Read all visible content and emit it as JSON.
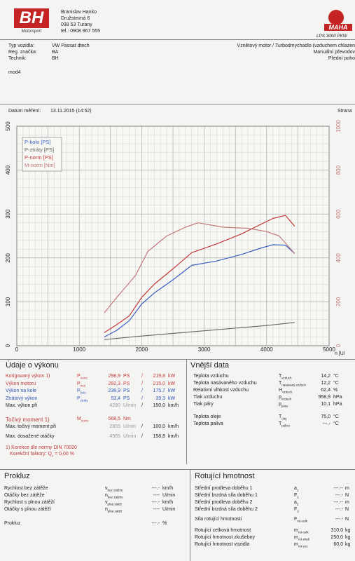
{
  "header": {
    "logo_main": "BH",
    "logo_sub": "Motorsport",
    "contact": [
      "Branislav Hanko",
      "Družstevná 6",
      "038 53 Turany",
      "tel.: 0908 967 555"
    ],
    "maha_logo": "MAHA",
    "maha_model": "LPS 3000 PKW"
  },
  "vehicle": {
    "type_label": "Typ vozidla:",
    "type_value": "VW Passat dtech",
    "reg_label": "Reg. značka:",
    "reg_value": "BA",
    "tech_label": "Technik:",
    "tech_value": "BH",
    "right_lines": [
      "Vznětový motor / Turbodmychadlo (vzduchem chlazen",
      "Manuální převodov",
      "Přední poho"
    ],
    "note": "mod4"
  },
  "measure": {
    "date_label": "Datum měření:",
    "date_value": "13.11.2015 (14:52)",
    "right": "Strana"
  },
  "chart_data": {
    "type": "line",
    "x_label": "n [U/",
    "x_ticks": [
      0,
      1000,
      2000,
      3000,
      4000,
      5000
    ],
    "xlim": [
      0,
      5000
    ],
    "y_left_ticks": [
      0,
      100,
      200,
      300,
      400,
      500
    ],
    "ylim_left": [
      0,
      500
    ],
    "y_right_ticks": [
      0,
      200,
      400,
      600,
      800,
      1000
    ],
    "ylim_right": [
      0,
      1000
    ],
    "legend": [
      {
        "name": "P-kolo [PS]",
        "color": "#3a5dbf"
      },
      {
        "name": "P-ztráty [PS]",
        "color": "#666666"
      },
      {
        "name": "P-norm [PS]",
        "color": "#c23a3a"
      },
      {
        "name": "M-norm [Nm]",
        "color": "#c47a7a"
      }
    ],
    "series": [
      {
        "name": "P-kolo [PS]",
        "axis": "left",
        "color": "#3a5dbf",
        "x": [
          1400,
          1600,
          1800,
          2000,
          2200,
          2500,
          2800,
          3200,
          3600,
          3900,
          4100,
          4300,
          4450
        ],
        "y": [
          20,
          35,
          57,
          95,
          120,
          150,
          183,
          193,
          208,
          222,
          230,
          229,
          210
        ]
      },
      {
        "name": "P-ztráty [PS]",
        "axis": "left",
        "color": "#666666",
        "x": [
          1400,
          2000,
          3000,
          4000,
          4450
        ],
        "y": [
          14,
          22,
          34,
          46,
          53
        ]
      },
      {
        "name": "P-norm [PS]",
        "axis": "left",
        "color": "#c23a3a",
        "x": [
          1400,
          1600,
          1800,
          2000,
          2200,
          2500,
          2800,
          3200,
          3600,
          3900,
          4100,
          4300,
          4450
        ],
        "y": [
          30,
          48,
          68,
          110,
          140,
          175,
          212,
          232,
          255,
          276,
          290,
          297,
          272
        ]
      },
      {
        "name": "M-norm [Nm]",
        "axis": "right",
        "color": "#c47a7a",
        "x": [
          1400,
          1600,
          1750,
          1900,
          2100,
          2400,
          2700,
          2900,
          3300,
          3700,
          4000,
          4200,
          4450
        ],
        "y": [
          150,
          220,
          270,
          320,
          430,
          500,
          540,
          560,
          540,
          535,
          520,
          500,
          420
        ]
      }
    ]
  },
  "performance": {
    "title": "Údaje o výkonu",
    "rows": [
      {
        "label": "Korigovaný výkon",
        "sup": "1)",
        "sym": "P",
        "sub": "norm",
        "v1": "298,9",
        "u1": "PS",
        "v2": "219,8",
        "u2": "kW",
        "cls": "red"
      },
      {
        "label": "Výkon motoru",
        "sup": "",
        "sym": "P",
        "sub": "mot",
        "v1": "292,3",
        "u1": "PS",
        "v2": "215,0",
        "u2": "kW",
        "cls": "red"
      },
      {
        "label": "Výkon na kole",
        "sup": "",
        "sym": "P",
        "sub": "kolo",
        "v1": "238,9",
        "u1": "PS",
        "v2": "175,7",
        "u2": "kW",
        "cls": "blue"
      },
      {
        "label": "Ztrátový výkon",
        "sup": "",
        "sym": "P",
        "sub": "ztráty",
        "v1": "53,4",
        "u1": "PS",
        "v2": "39,3",
        "u2": "kW",
        "cls": "blue"
      },
      {
        "label": "Max. výkon při",
        "sup": "",
        "sym": "",
        "sub": "",
        "v1": "4280",
        "u1": "U/min",
        "v2": "150,0",
        "u2": "km/h",
        "cls": "dark"
      }
    ],
    "torque": {
      "label": "Točivý moment",
      "sup": "1)",
      "sym": "M",
      "sub": "norm",
      "v1": "568,5",
      "u1": "Nm"
    },
    "torque_at": {
      "label": "Max. točivý moment při",
      "v1": "2855",
      "u1": "U/min",
      "v2": "100,0",
      "u2": "km/h"
    },
    "max_rpm": {
      "label": "Max. dosažené otáčky",
      "v1": "4565",
      "u1": "U/min",
      "v2": "158,8",
      "u2": "km/h"
    },
    "norm_note": "Korekce dle normy DIN 70020",
    "norm_note_sup": "1)",
    "factor": "Korekční faktory: Q",
    "factor_sub": "v",
    "factor_val": "= 0,00 %"
  },
  "env": {
    "title": "Vnější data",
    "rows": [
      {
        "label": "Teplota vzduchu",
        "sym": "T",
        "sub": "vzduch",
        "val": "14,2",
        "unit": "°C"
      },
      {
        "label": "Teplota nasávaného vzduchu",
        "sym": "T",
        "sub": "nasávaný vzduch",
        "val": "12,2",
        "unit": "°C"
      },
      {
        "label": "Relativní vlhkost vzduchu",
        "sym": "H",
        "sub": "vzduch",
        "val": "62,4",
        "unit": "%"
      },
      {
        "label": "Tlak vzduchu",
        "sym": "p",
        "sub": "vzduch",
        "val": "958,9",
        "unit": "hPa"
      },
      {
        "label": "Tlak páry",
        "sym": "p",
        "sub": "pára",
        "val": "10,1",
        "unit": "hPa"
      },
      {
        "label": "Teplota oleje",
        "sym": "T",
        "sub": "olej",
        "val": "75,0",
        "unit": "°C"
      },
      {
        "label": "Teplota paliva",
        "sym": "T",
        "sub": "palivo",
        "val": "---.-",
        "unit": "°C"
      }
    ]
  },
  "prokluz": {
    "title": "Prokluz",
    "rows": [
      {
        "label": "Rychlost bez zátěže",
        "sym": "v",
        "sub": "bez zátěže",
        "val": "---.-",
        "unit": "km/h"
      },
      {
        "label": "Otáčky bez zátěže",
        "sym": "n",
        "sub": "bez zátěže",
        "val": "----",
        "unit": "U/min"
      },
      {
        "label": "Rychlost s plnou zátěží",
        "sym": "v",
        "sub": "plná zátěž",
        "val": "---.-",
        "unit": "km/h"
      },
      {
        "label": "Otáčky s plnou zátěží",
        "sym": "n",
        "sub": "plná zátěž",
        "val": "----",
        "unit": "U/min"
      }
    ],
    "total_label": "Prokluz",
    "total_val": "---.-",
    "total_unit": "%"
  },
  "rot": {
    "title": "Rotující hmotnost",
    "rows": [
      {
        "label": "Střední prodleva doběhu 1",
        "sym": "a",
        "sub": "1",
        "val": "---.--",
        "unit": "m"
      },
      {
        "label": "Střední brzdná síla doběhu 1",
        "sym": "F",
        "sub": "1",
        "val": "---.-",
        "unit": "N"
      },
      {
        "label": "Střední prodleva doběhu 2",
        "sym": "a",
        "sub": "2",
        "val": "---.--",
        "unit": "m"
      },
      {
        "label": "Střední brzdná síla doběhu 2",
        "sym": "F",
        "sub": "2",
        "val": "---.-",
        "unit": "N"
      },
      {
        "label": "Síla rotující hmotnosti",
        "sym": "F",
        "sub": "rot-celk",
        "val": "---.-",
        "unit": "N"
      },
      {
        "label": "Rotující celková hmotnost",
        "sym": "m",
        "sub": "rot-celk",
        "val": "310,0",
        "unit": "kg"
      },
      {
        "label": "Rotující hmotnost zkušebny",
        "sym": "m",
        "sub": "rot-zkuš",
        "val": "250,0",
        "unit": "kg"
      },
      {
        "label": "Rotující hmotnost vozidla",
        "sym": "m",
        "sub": "rot-voz",
        "val": "60,0",
        "unit": "kg"
      }
    ]
  }
}
